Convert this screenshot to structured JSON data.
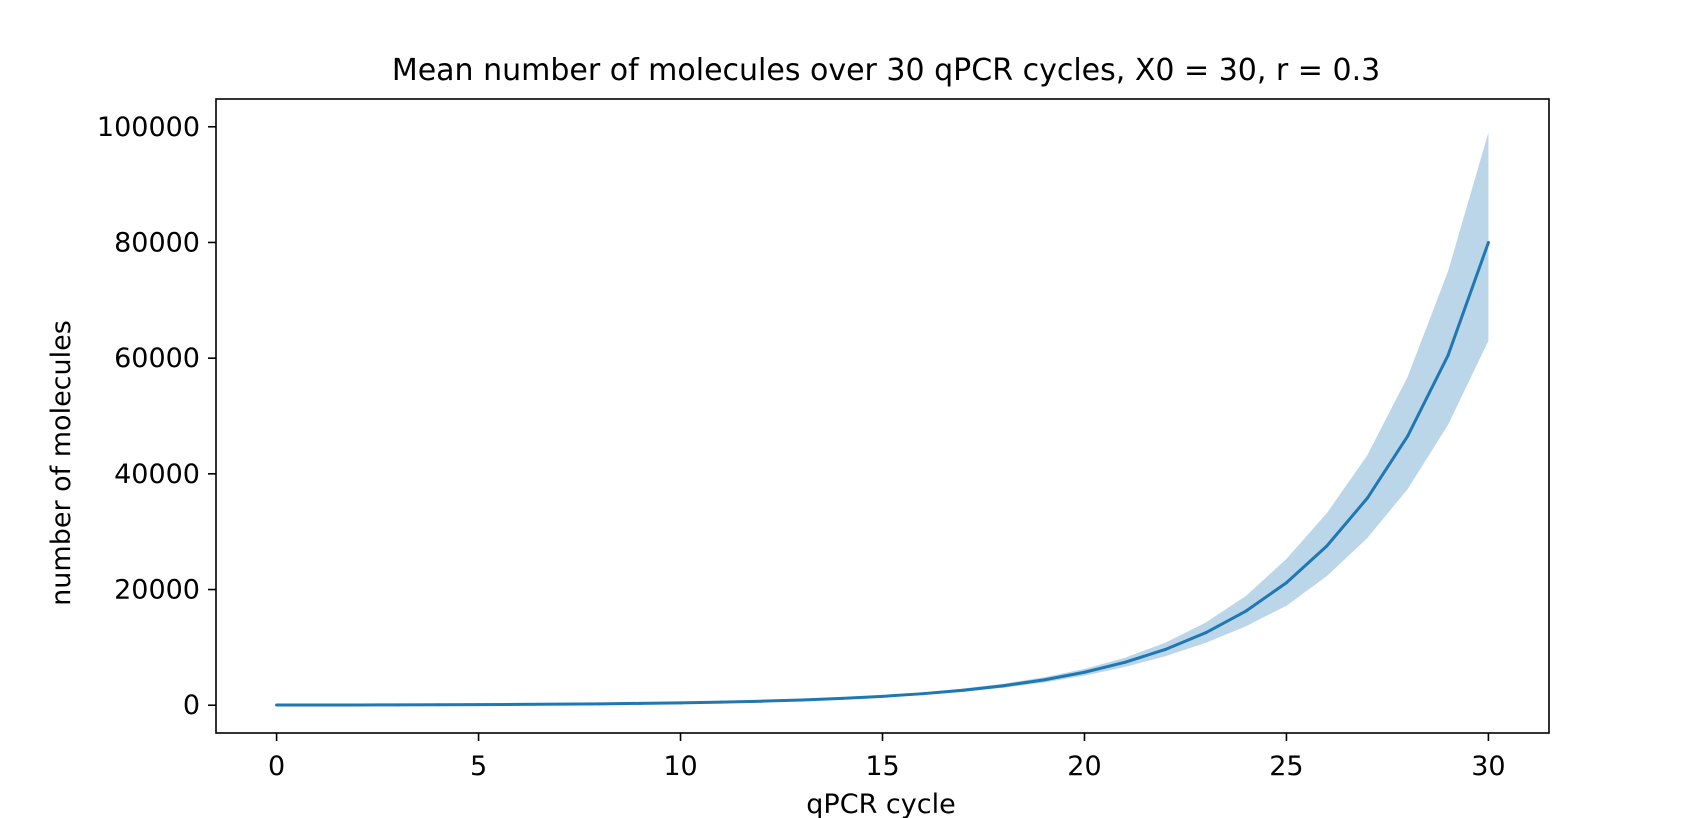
{
  "chart_data": {
    "type": "line",
    "title": "Mean number of molecules over 30 qPCR cycles, X0 = 30, r = 0.3",
    "xlabel": "qPCR cycle",
    "ylabel": "number of molecules",
    "xlim": [
      -1.5,
      31.5
    ],
    "ylim": [
      -4800,
      104800
    ],
    "x_ticks": [
      0,
      5,
      10,
      15,
      20,
      25,
      30
    ],
    "y_ticks": [
      0,
      20000,
      40000,
      60000,
      80000,
      100000
    ],
    "grid": false,
    "legend": "none",
    "series": [
      {
        "color": "#1f77b4",
        "band_color": "#1f77b4",
        "x": [
          0,
          1,
          2,
          3,
          4,
          5,
          6,
          7,
          8,
          9,
          10,
          11,
          12,
          13,
          14,
          15,
          16,
          17,
          18,
          19,
          20,
          21,
          22,
          23,
          24,
          25,
          26,
          27,
          28,
          29,
          30
        ],
        "mean": [
          30,
          39,
          51,
          66,
          86,
          111,
          145,
          188,
          245,
          318,
          414,
          538,
          699,
          909,
          1181,
          1536,
          1996,
          2595,
          3374,
          4386,
          5702,
          7413,
          9637,
          12528,
          16286,
          21172,
          27523,
          35780,
          46515,
          60469,
          80000
        ],
        "lower": [
          30,
          37,
          47,
          60,
          77,
          98,
          126,
          163,
          210,
          272,
          353,
          460,
          601,
          786,
          1028,
          1346,
          1762,
          2305,
          3013,
          3933,
          5120,
          6613,
          8464,
          10779,
          13663,
          17200,
          22328,
          28885,
          37365,
          48468,
          63000
        ],
        "upper": [
          30,
          41,
          55,
          72,
          95,
          124,
          164,
          213,
          280,
          364,
          475,
          616,
          797,
          1032,
          1334,
          1726,
          2230,
          2885,
          3735,
          4839,
          6284,
          8213,
          10810,
          14277,
          18909,
          25300,
          33200,
          43200,
          56765,
          75000,
          99000
        ]
      }
    ]
  }
}
